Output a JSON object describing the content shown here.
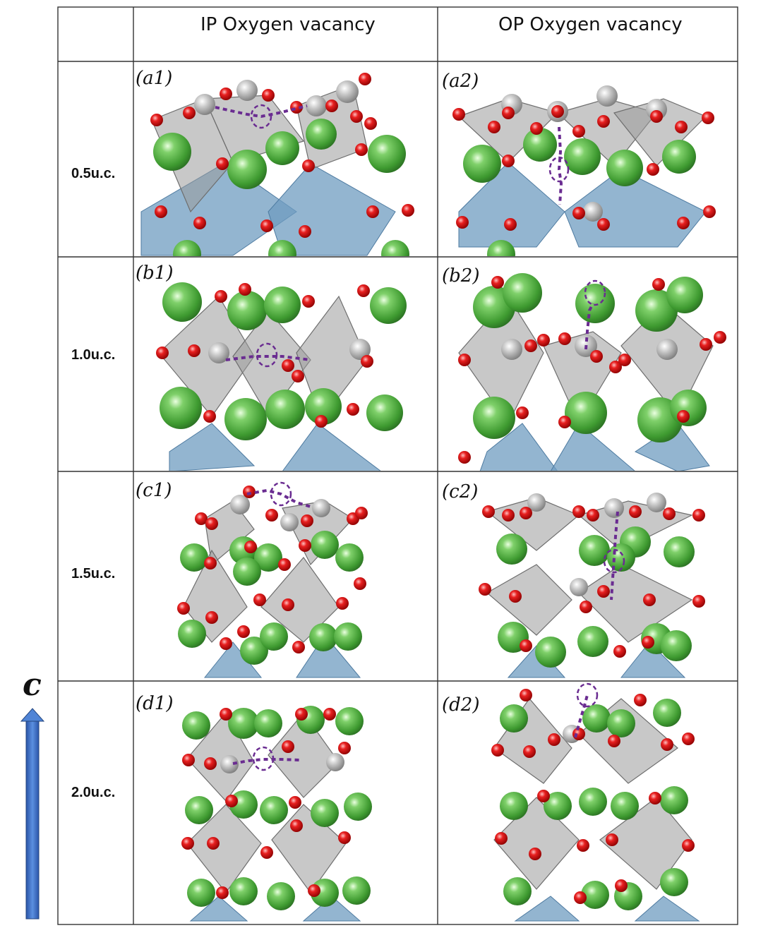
{
  "columns": [
    "IP Oxygen vacancy",
    "OP Oxygen vacancy"
  ],
  "rows": [
    {
      "label": "0.5u.c.",
      "panels": [
        "(a1)",
        "(a2)"
      ]
    },
    {
      "label": "1.0u.c.",
      "panels": [
        "(b1)",
        "(b2)"
      ]
    },
    {
      "label": "1.5u.c.",
      "panels": [
        "(c1)",
        "(c2)"
      ]
    },
    {
      "label": "2.0u.c.",
      "panels": [
        "(d1)",
        "(d2)"
      ]
    }
  ],
  "axis_label": "c",
  "colors": {
    "La_atom": "#4caf3c",
    "O_atom": "#e01010",
    "transition_metal_atom": "#b8b8b8",
    "octahedron_grey": "#9a9a9a",
    "octahedron_blue": "#6f9cc0",
    "vacancy_marker": "#6a2c91",
    "arrow": "#3a6fc4"
  }
}
